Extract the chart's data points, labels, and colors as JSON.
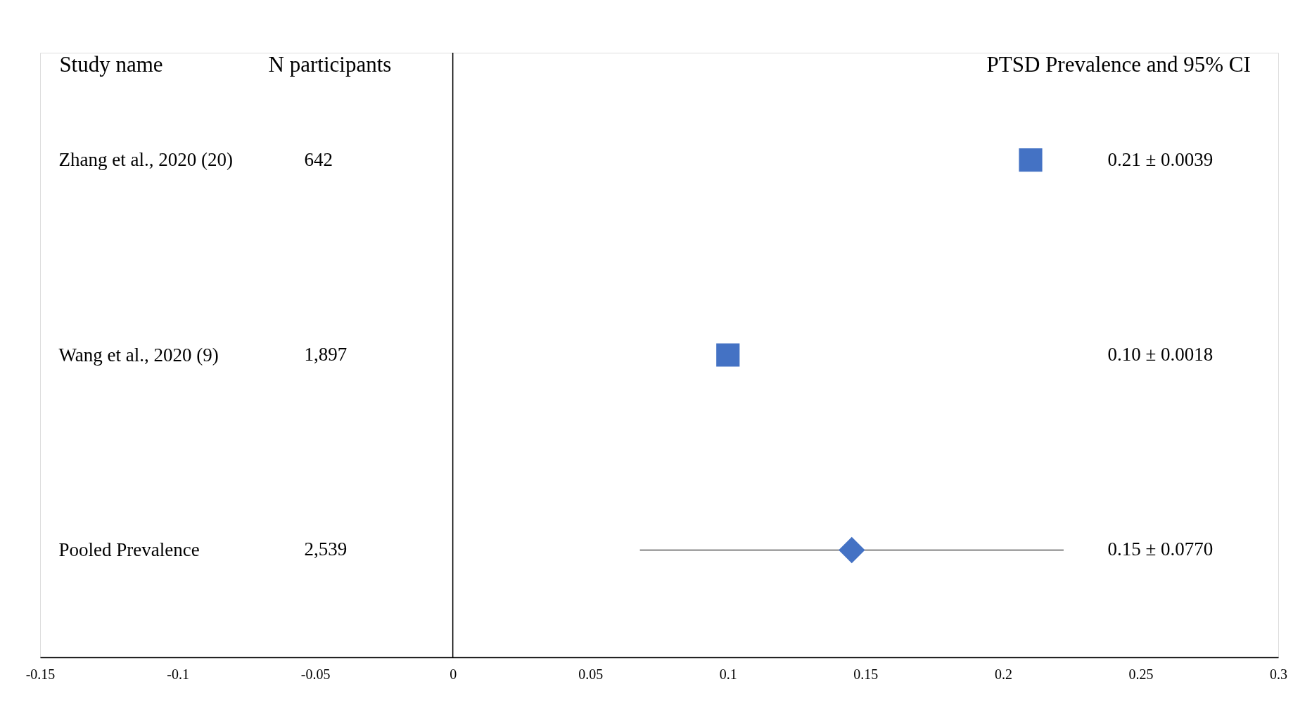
{
  "chart_data": {
    "type": "scatter",
    "orientation": "horizontal",
    "categories": [
      "Zhang et al., 2020 (20)",
      "Wang et al., 2020 (9)",
      "Pooled Prevalence"
    ],
    "series": [
      {
        "marker": "square",
        "color": "#4472c4",
        "values": [
          0.21,
          0.1,
          null
        ]
      },
      {
        "marker": "diamond",
        "color": "#4472c4",
        "values": [
          null,
          null,
          0.145
        ],
        "errors": [
          null,
          null,
          0.077
        ]
      }
    ],
    "value_labels": [
      "0.21 ± 0.0039",
      "0.10 ± 0.0018",
      "0.15 ± 0.0770"
    ],
    "annotations": [
      "Study name",
      "N participants",
      "PTSD Prevalence and 95% CI",
      "642",
      "1,897",
      "2,539"
    ],
    "ref_lines": [
      {
        "axis": "x",
        "value": 0,
        "color": "#000000"
      }
    ],
    "xlim": [
      -0.15,
      0.3
    ],
    "xticks": [
      -0.15,
      -0.1,
      -0.05,
      0,
      0.05,
      0.1,
      0.15,
      0.2,
      0.25,
      0.3
    ],
    "grid": false
  }
}
